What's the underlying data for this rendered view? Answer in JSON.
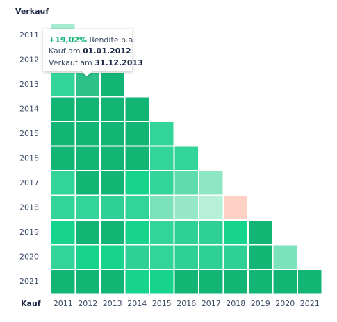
{
  "chart_data": {
    "type": "heatmap",
    "x_label": "Kauf",
    "y_label": "Verkauf",
    "x_categories": [
      "2011",
      "2012",
      "2013",
      "2014",
      "2015",
      "2016",
      "2017",
      "2018",
      "2019",
      "2020",
      "2021"
    ],
    "y_categories": [
      "2011",
      "2012",
      "2013",
      "2014",
      "2015",
      "2016",
      "2017",
      "2018",
      "2019",
      "2020",
      "2021"
    ],
    "cell_colors": [
      [
        "#a5ecd0"
      ],
      [
        "#2ed096",
        "#33d49a"
      ],
      [
        "#33d49a",
        "#2cc189",
        "#13b574"
      ],
      [
        "#13b574",
        "#13b574",
        "#13b574",
        "#13b574"
      ],
      [
        "#13b574",
        "#13b574",
        "#13b574",
        "#13b574",
        "#33d49a"
      ],
      [
        "#13b574",
        "#13b574",
        "#13b574",
        "#13b574",
        "#33d49a",
        "#33d49a"
      ],
      [
        "#33d49a",
        "#13b574",
        "#13b574",
        "#16d48c",
        "#33d49a",
        "#5fdcae",
        "#8de6c4"
      ],
      [
        "#33d49a",
        "#33d49a",
        "#2ed096",
        "#33d49a",
        "#7be2bb",
        "#97e8c9",
        "#b7f0d9",
        "#ffd0c4"
      ],
      [
        "#16d48c",
        "#13b574",
        "#13b574",
        "#16d48c",
        "#33d49a",
        "#2ed096",
        "#2ed096",
        "#16d48c",
        "#13b574"
      ],
      [
        "#33d49a",
        "#16d48c",
        "#16d48c",
        "#2ed096",
        "#33d49a",
        "#2ed096",
        "#2ed096",
        "#2ed096",
        "#13b574",
        "#7be2bb"
      ],
      [
        "#13b574",
        "#13b574",
        "#13b574",
        "#16d48c",
        "#16d48c",
        "#13b574",
        "#13b574",
        "#13b574",
        "#13b574",
        "#13b574",
        "#13b574"
      ]
    ],
    "tooltip": {
      "return": "+19,02%",
      "return_text": "Rendite p.a.",
      "buy_text": "Kauf am",
      "buy_date": "01.01.2012",
      "sell_text": "Verkauf am",
      "sell_date": "31.12.2013"
    }
  }
}
